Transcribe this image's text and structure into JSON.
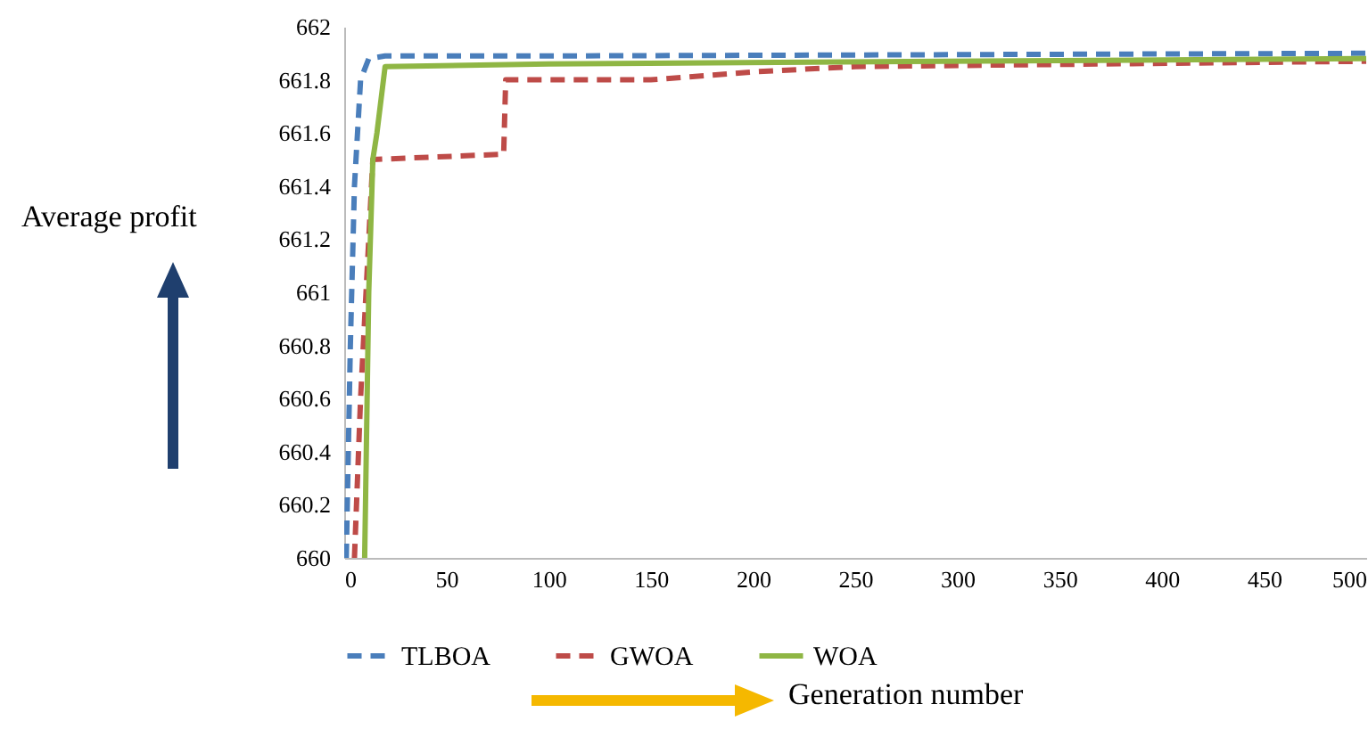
{
  "chart_data": {
    "type": "line",
    "xlabel": "Generation number",
    "ylabel": "Average profit",
    "xlim": [
      0,
      500
    ],
    "xticks": [
      0,
      50,
      100,
      150,
      200,
      250,
      300,
      350,
      400,
      450,
      500
    ],
    "ylim": [
      660,
      662
    ],
    "yticks": [
      660,
      660.2,
      660.4,
      660.6,
      660.8,
      661,
      661.2,
      661.4,
      661.6,
      661.8,
      662
    ],
    "grid": false,
    "legend": "bottom",
    "series": [
      {
        "name": "TLBOA",
        "color": "#4a7ebb",
        "line_style": "dashed",
        "x": [
          1,
          3,
          5,
          8,
          12,
          20,
          100,
          500
        ],
        "values": [
          660,
          660.8,
          661.4,
          661.8,
          661.88,
          661.89,
          661.89,
          661.9
        ]
      },
      {
        "name": "GWOA",
        "color": "#be4b48",
        "line_style": "dashed",
        "x": [
          5,
          8,
          12,
          14,
          78,
          79,
          150,
          200,
          250,
          500
        ],
        "values": [
          660,
          660.6,
          661.2,
          661.5,
          661.52,
          661.8,
          661.8,
          661.83,
          661.85,
          661.87
        ]
      },
      {
        "name": "WOA",
        "color": "#8fb644",
        "line_style": "solid",
        "x": [
          10,
          12,
          14,
          16,
          20,
          100,
          500
        ],
        "values": [
          660,
          661,
          661.5,
          661.6,
          661.85,
          661.86,
          661.88
        ]
      }
    ]
  }
}
